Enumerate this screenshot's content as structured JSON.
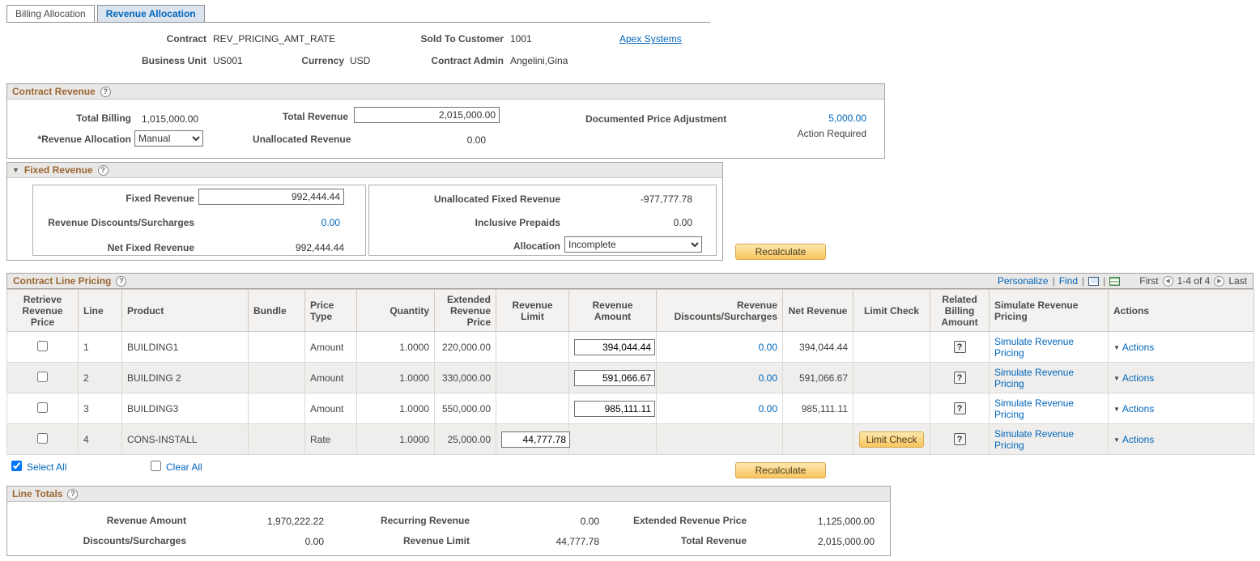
{
  "icons": {
    "help": "?",
    "collapse_arrow": "▼",
    "actions_arrow": "▼",
    "prev_arrow": "◀",
    "next_arrow": "▶",
    "pipe": "|"
  },
  "tabs": {
    "billing": "Billing Allocation",
    "revenue": "Revenue Allocation"
  },
  "header": {
    "contract_label": "Contract",
    "contract": "REV_PRICING_AMT_RATE",
    "sold_to_label": "Sold To Customer",
    "sold_to": "1001",
    "customer_name": "Apex Systems",
    "business_unit_label": "Business Unit",
    "business_unit": "US001",
    "currency_label": "Currency",
    "currency": "USD",
    "contract_admin_label": "Contract Admin",
    "contract_admin": "Angelini,Gina"
  },
  "contract_revenue": {
    "title": "Contract Revenue",
    "total_billing_label": "Total Billing",
    "total_billing": "1,015,000.00",
    "total_revenue_label": "Total Revenue",
    "total_revenue": "2,015,000.00",
    "doc_price_adj_label": "Documented Price Adjustment",
    "doc_price_adj": "5,000.00",
    "action_required": "Action Required",
    "revenue_allocation_label": "*Revenue Allocation",
    "revenue_allocation": "Manual",
    "unallocated_revenue_label": "Unallocated Revenue",
    "unallocated_revenue": "0.00"
  },
  "fixed_revenue": {
    "title": "Fixed Revenue",
    "fixed_revenue_label": "Fixed Revenue",
    "fixed_revenue": "992,444.44",
    "discounts_label": "Revenue Discounts/Surcharges",
    "discounts": "0.00",
    "net_fixed_label": "Net Fixed Revenue",
    "net_fixed": "992,444.44",
    "unallocated_label": "Unallocated Fixed Revenue",
    "unallocated": "-977,777.78",
    "inclusive_prepaids_label": "Inclusive Prepaids",
    "inclusive_prepaids": "0.00",
    "allocation_label": "Allocation",
    "allocation": "Incomplete",
    "recalculate": "Recalculate"
  },
  "line_pricing": {
    "title": "Contract Line Pricing",
    "personalize": "Personalize",
    "find": "Find",
    "first": "First",
    "range": "1-4 of 4",
    "last": "Last",
    "columns": {
      "retrieve": "Retrieve Revenue Price",
      "line": "Line",
      "product": "Product",
      "bundle": "Bundle",
      "price_type": "Price Type",
      "quantity": "Quantity",
      "ext_price": "Extended Revenue Price",
      "revenue_limit": "Revenue Limit",
      "revenue_amount": "Revenue Amount",
      "discounts": "Revenue Discounts/Surcharges",
      "net_revenue": "Net Revenue",
      "limit_check": "Limit Check",
      "related_billing": "Related Billing Amount",
      "simulate": "Simulate Revenue Pricing",
      "actions": "Actions"
    },
    "rows": [
      {
        "line": "1",
        "product": "BUILDING1",
        "bundle": "",
        "price_type": "Amount",
        "quantity": "1.0000",
        "ext_price": "220,000.00",
        "revenue_limit": "",
        "revenue_limit_input": false,
        "revenue_amount": "394,044.44",
        "revenue_amount_input": true,
        "discounts": "0.00",
        "net_revenue": "394,044.44",
        "limit_check_button": false
      },
      {
        "line": "2",
        "product": "BUILDING 2",
        "bundle": "",
        "price_type": "Amount",
        "quantity": "1.0000",
        "ext_price": "330,000.00",
        "revenue_limit": "",
        "revenue_limit_input": false,
        "revenue_amount": "591,066.67",
        "revenue_amount_input": true,
        "discounts": "0.00",
        "net_revenue": "591,066.67",
        "limit_check_button": false
      },
      {
        "line": "3",
        "product": "BUILDING3",
        "bundle": "",
        "price_type": "Amount",
        "quantity": "1.0000",
        "ext_price": "550,000.00",
        "revenue_limit": "",
        "revenue_limit_input": false,
        "revenue_amount": "985,111.11",
        "revenue_amount_input": true,
        "discounts": "0.00",
        "net_revenue": "985,111.11",
        "limit_check_button": false
      },
      {
        "line": "4",
        "product": "CONS-INSTALL",
        "bundle": "",
        "price_type": "Rate",
        "quantity": "1.0000",
        "ext_price": "25,000.00",
        "revenue_limit": "44,777.78",
        "revenue_limit_input": true,
        "revenue_amount": "",
        "revenue_amount_input": false,
        "discounts": "",
        "net_revenue": "",
        "limit_check_button": true
      }
    ],
    "limit_check_label": "Limit Check",
    "simulate_label": "Simulate Revenue Pricing",
    "actions_label": "Actions",
    "select_all": "Select All",
    "clear_all": "Clear All",
    "recalculate": "Recalculate"
  },
  "line_totals": {
    "title": "Line Totals",
    "revenue_amount_label": "Revenue Amount",
    "revenue_amount": "1,970,222.22",
    "recurring_label": "Recurring Revenue",
    "recurring": "0.00",
    "ext_price_label": "Extended Revenue Price",
    "ext_price": "1,125,000.00",
    "discounts_label": "Discounts/Surcharges",
    "discounts": "0.00",
    "revenue_limit_label": "Revenue Limit",
    "revenue_limit": "44,777.78",
    "total_revenue_label": "Total Revenue",
    "total_revenue": "2,015,000.00"
  }
}
